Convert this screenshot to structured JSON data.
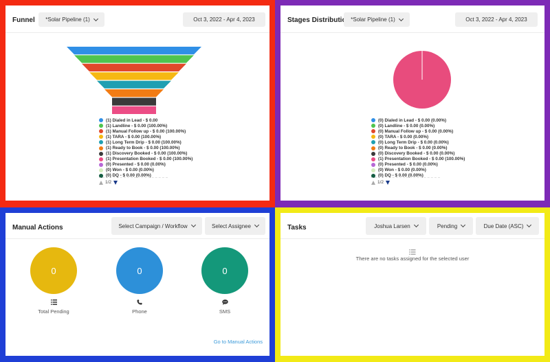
{
  "funnel": {
    "title": "Funnel",
    "pipeline": "*Solar Pipeline (1)",
    "date_range": "Oct 3, 2022 - Apr 4, 2023",
    "legend": [
      {
        "label": "(1) Dialed in Lead - $ 0.00",
        "color": "#2f8fe6"
      },
      {
        "label": "(1) Landline - $ 0.00 (100.00%)",
        "color": "#4fc44f"
      },
      {
        "label": "(1) Manual Follow up - $ 0.00 (100.00%)",
        "color": "#e2482a"
      },
      {
        "label": "(1) TARA - $ 0.00 (100.00%)",
        "color": "#f6b812"
      },
      {
        "label": "(1) Long Term Drip - $ 0.00 (100.00%)",
        "color": "#1f9fb2"
      },
      {
        "label": "(1) Ready to Book - $ 0.00 (100.00%)",
        "color": "#f27c14"
      },
      {
        "label": "(1) Discovery Booked - $ 0.00 (100.00%)",
        "color": "#3a3a3a"
      },
      {
        "label": "(1) Presentation Booked - $ 0.00 (100.00%)",
        "color": "#ec4d86"
      },
      {
        "label": "(0) Presented - $ 0.00 (0.00%)",
        "color": "#b768d6"
      },
      {
        "label": "(0) Won - $ 0.00 (0.00%)",
        "color": "#d5ecbe"
      },
      {
        "label": "(0) DQ - $ 0.00 (0.00%)",
        "color": "#145d42"
      }
    ],
    "pager": "1/2"
  },
  "stages": {
    "title": "Stages Distribution",
    "pipeline": "*Solar Pipeline (1)",
    "date_range": "Oct 3, 2022 - Apr 4, 2023",
    "legend": [
      {
        "label": "(0) Dialed in Lead - $ 0.00 (0.00%)",
        "color": "#2f8fe6"
      },
      {
        "label": "(0) Landline - $ 0.00 (0.00%)",
        "color": "#4fc44f"
      },
      {
        "label": "(0) Manual Follow up - $ 0.00 (0.00%)",
        "color": "#e2482a"
      },
      {
        "label": "(0) TARA - $ 0.00 (0.00%)",
        "color": "#f6b812"
      },
      {
        "label": "(0) Long Term Drip - $ 0.00 (0.00%)",
        "color": "#1f9fb2"
      },
      {
        "label": "(0) Ready to Book - $ 0.00 (0.00%)",
        "color": "#f27c14"
      },
      {
        "label": "(0) Discovery Booked - $ 0.00 (0.00%)",
        "color": "#3a3a3a"
      },
      {
        "label": "(1) Presentation Booked - $ 0.00 (100.00%)",
        "color": "#ec4d86"
      },
      {
        "label": "(0) Presented - $ 0.00 (0.00%)",
        "color": "#b768d6"
      },
      {
        "label": "(0) Won - $ 0.00 (0.00%)",
        "color": "#d5ecbe"
      },
      {
        "label": "(0) DQ - $ 0.00 (0.00%)",
        "color": "#145d42"
      }
    ],
    "pager": "1/2",
    "pie_color": "#e84c7d"
  },
  "manual": {
    "title": "Manual Actions",
    "campaign_select": "Select Campaign / Workflow",
    "assignee_select": "Select Assignee",
    "metrics": [
      {
        "value": "0",
        "label": "Total Pending",
        "color": "#e6b80f",
        "icon": "list-icon"
      },
      {
        "value": "0",
        "label": "Phone",
        "color": "#2d90d9",
        "icon": "phone-icon"
      },
      {
        "value": "0",
        "label": "SMS",
        "color": "#14987a",
        "icon": "chat-icon"
      }
    ],
    "link": "Go to Manual Actions"
  },
  "tasks": {
    "title": "Tasks",
    "user_select": "Joshua Larsen",
    "status_select": "Pending",
    "sort_select": "Due Date (ASC)",
    "empty_text": "There are no tasks assigned for the selected user"
  },
  "chart_data": [
    {
      "type": "funnel",
      "title": "Funnel",
      "categories": [
        "Dialed in Lead",
        "Landline",
        "Manual Follow up",
        "TARA",
        "Long Term Drip",
        "Ready to Book",
        "Discovery Booked",
        "Presentation Booked",
        "Presented",
        "Won",
        "DQ"
      ],
      "values": [
        1,
        1,
        1,
        1,
        1,
        1,
        1,
        1,
        0,
        0,
        0
      ],
      "colors": [
        "#2f8fe6",
        "#4fc44f",
        "#e2482a",
        "#f6b812",
        "#1f9fb2",
        "#f27c14",
        "#3a3a3a",
        "#ec4d86",
        "#b768d6",
        "#d5ecbe",
        "#145d42"
      ]
    },
    {
      "type": "pie",
      "title": "Stages Distribution",
      "categories": [
        "Dialed in Lead",
        "Landline",
        "Manual Follow up",
        "TARA",
        "Long Term Drip",
        "Ready to Book",
        "Discovery Booked",
        "Presentation Booked",
        "Presented",
        "Won",
        "DQ"
      ],
      "values": [
        0,
        0,
        0,
        0,
        0,
        0,
        0,
        1,
        0,
        0,
        0
      ]
    }
  ]
}
